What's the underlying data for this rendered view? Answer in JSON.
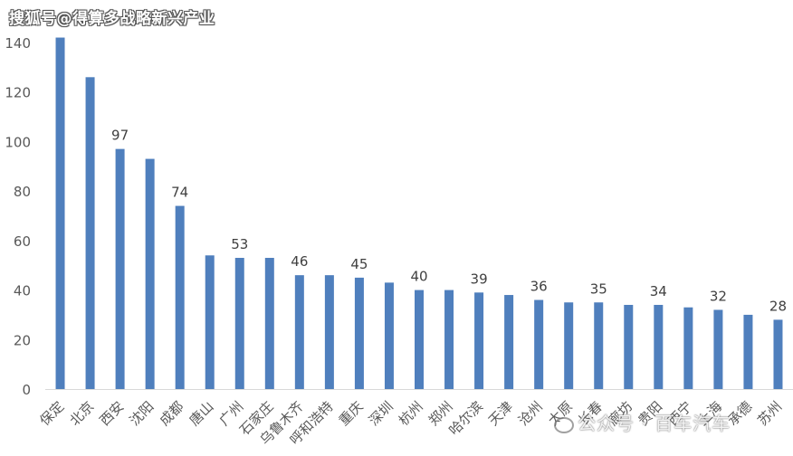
{
  "watermarks": {
    "top": "搜狐号@得算多战略新兴产业",
    "bottom": "公众号 · 百车汽车"
  },
  "colors": {
    "bar": "#4f7fbd",
    "axis_text": "#595959",
    "label_text": "#404040",
    "baseline": "#d9d9d9"
  },
  "chart_data": {
    "type": "bar",
    "categories": [
      "保定",
      "北京",
      "西安",
      "沈阳",
      "成都",
      "唐山",
      "广州",
      "石家庄",
      "乌鲁木齐",
      "呼和浩特",
      "重庆",
      "深圳",
      "杭州",
      "郑州",
      "哈尔滨",
      "天津",
      "沧州",
      "太原",
      "长春",
      "廊坊",
      "贵阳",
      "西宁",
      "上海",
      "承德",
      "苏州"
    ],
    "values": [
      142,
      126,
      97,
      93,
      74,
      54,
      53,
      53,
      46,
      46,
      45,
      43,
      40,
      40,
      39,
      38,
      36,
      35,
      35,
      34,
      34,
      33,
      32,
      30,
      28
    ],
    "data_labels": [
      null,
      null,
      "97",
      null,
      "74",
      null,
      "53",
      null,
      "46",
      null,
      "45",
      null,
      "40",
      null,
      "39",
      null,
      "36",
      null,
      "35",
      null,
      "34",
      null,
      "32",
      null,
      "28"
    ],
    "y_ticks": [
      "0",
      "20",
      "40",
      "60",
      "80",
      "100",
      "120",
      "140"
    ],
    "ylim": [
      0,
      140
    ],
    "grid": false,
    "legend": "none",
    "title": "",
    "xlabel": "",
    "ylabel": ""
  }
}
